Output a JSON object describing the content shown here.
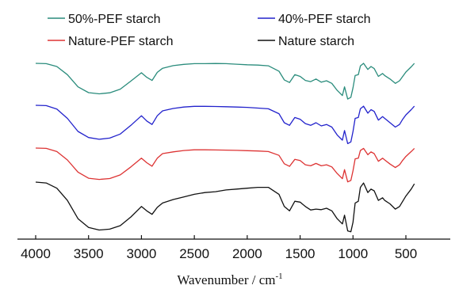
{
  "chart_data": {
    "type": "line",
    "title": "",
    "xlabel": "Wavenumber / cm",
    "xlabel_superscript": "-1",
    "ylabel": "",
    "xlim": [
      4000,
      400
    ],
    "x_reversed": true,
    "y_ticks_shown": false,
    "grid": false,
    "legend_placement": "top",
    "x_ticks": [
      4000,
      3500,
      3000,
      2500,
      2000,
      1500,
      1000,
      500
    ],
    "x_tick_labels": [
      "4000",
      "3500",
      "3000",
      "2500",
      "2000",
      "1500",
      "1000",
      "500"
    ],
    "x": [
      4000,
      3900,
      3800,
      3700,
      3600,
      3500,
      3400,
      3300,
      3200,
      3100,
      3000,
      2950,
      2900,
      2850,
      2800,
      2700,
      2600,
      2500,
      2400,
      2300,
      2200,
      2100,
      2000,
      1900,
      1800,
      1700,
      1650,
      1600,
      1550,
      1500,
      1450,
      1400,
      1350,
      1300,
      1250,
      1200,
      1150,
      1100,
      1080,
      1050,
      1020,
      1000,
      980,
      950,
      930,
      900,
      860,
      830,
      800,
      760,
      720,
      700,
      650,
      600,
      560,
      530,
      500,
      450,
      420
    ],
    "series": [
      {
        "name": "50%-PEF starch",
        "color": "#2a8c7c",
        "values": [
          0.0,
          0.2,
          1.8,
          6.5,
          13.5,
          16.8,
          17.5,
          16.9,
          14.8,
          10.2,
          5.4,
          8.0,
          9.8,
          5.2,
          2.8,
          1.3,
          0.6,
          0.2,
          0.2,
          0.1,
          0.2,
          0.5,
          0.8,
          1.0,
          1.4,
          4.5,
          9.5,
          11.0,
          6.5,
          7.5,
          9.8,
          10.5,
          9.0,
          10.8,
          10.0,
          11.5,
          15.5,
          18.5,
          13.5,
          20.5,
          19.5,
          14.0,
          7.0,
          6.5,
          1.5,
          0.0,
          3.5,
          1.8,
          3.0,
          7.5,
          5.8,
          7.0,
          9.0,
          11.5,
          10.0,
          7.5,
          5.0,
          2.0,
          0.0
        ]
      },
      {
        "name": "40%-PEF starch",
        "color": "#2222cc",
        "values": [
          0.0,
          0.2,
          2.2,
          7.5,
          15.0,
          18.5,
          19.5,
          18.8,
          16.5,
          11.5,
          6.0,
          9.0,
          11.0,
          6.0,
          3.2,
          1.8,
          1.0,
          0.6,
          0.6,
          0.7,
          0.8,
          1.0,
          1.2,
          1.6,
          2.0,
          4.8,
          10.0,
          11.5,
          7.0,
          8.0,
          10.5,
          11.5,
          10.0,
          11.8,
          11.0,
          12.5,
          17.0,
          20.0,
          14.5,
          22.0,
          21.0,
          15.0,
          7.5,
          7.0,
          2.0,
          0.5,
          4.5,
          2.5,
          3.5,
          8.5,
          6.5,
          7.5,
          10.0,
          12.5,
          11.0,
          8.0,
          5.5,
          2.5,
          0.5
        ]
      },
      {
        "name": "Nature-PEF starch",
        "color": "#dd3333",
        "values": [
          0.0,
          0.2,
          2.0,
          6.8,
          13.8,
          17.3,
          18.0,
          17.5,
          15.4,
          10.8,
          5.8,
          8.4,
          10.4,
          5.8,
          3.2,
          2.2,
          1.4,
          1.0,
          1.0,
          1.1,
          1.2,
          1.3,
          1.5,
          1.7,
          2.0,
          4.2,
          9.0,
          10.5,
          6.5,
          7.2,
          9.6,
          10.2,
          8.8,
          10.2,
          9.6,
          10.8,
          14.6,
          17.6,
          12.4,
          19.4,
          18.6,
          13.0,
          6.2,
          5.8,
          1.4,
          0.2,
          3.8,
          2.2,
          3.2,
          7.6,
          5.8,
          6.8,
          9.2,
          11.2,
          9.6,
          7.0,
          4.8,
          2.0,
          0.2
        ]
      },
      {
        "name": "Nature starch",
        "color": "#111111",
        "values": [
          0.0,
          0.5,
          3.5,
          10.5,
          21.0,
          26.0,
          27.5,
          27.0,
          25.0,
          20.0,
          14.0,
          16.5,
          18.5,
          14.5,
          12.0,
          10.0,
          8.5,
          7.0,
          6.0,
          5.5,
          4.5,
          4.0,
          3.5,
          3.0,
          3.0,
          7.0,
          14.0,
          16.5,
          11.0,
          11.5,
          14.0,
          16.0,
          15.5,
          15.8,
          15.0,
          16.5,
          21.0,
          24.0,
          19.0,
          28.0,
          28.5,
          23.0,
          12.0,
          11.0,
          3.0,
          0.5,
          6.0,
          4.0,
          5.0,
          10.5,
          9.0,
          10.5,
          12.5,
          15.5,
          14.0,
          11.0,
          8.0,
          4.0,
          1.0
        ]
      }
    ]
  }
}
